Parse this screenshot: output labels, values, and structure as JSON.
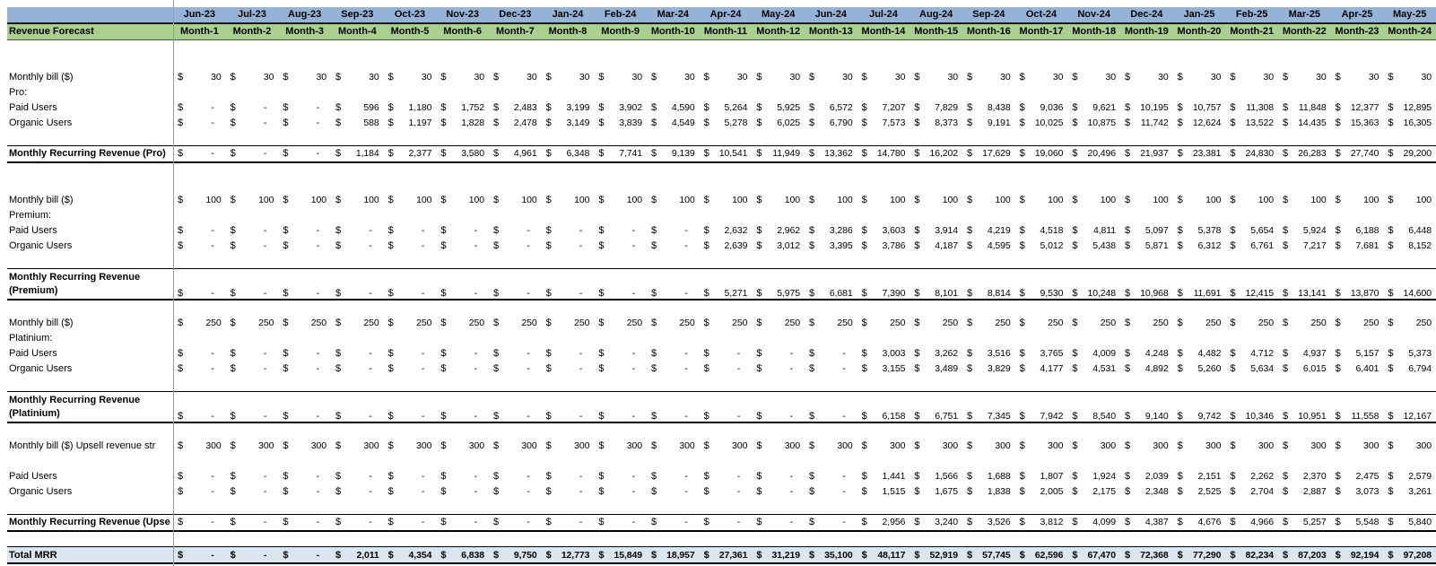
{
  "table": {
    "title": "Revenue Forecast",
    "currency": "$",
    "dates": [
      "Jun-23",
      "Jul-23",
      "Aug-23",
      "Sep-23",
      "Oct-23",
      "Nov-23",
      "Dec-23",
      "Jan-24",
      "Feb-24",
      "Mar-24",
      "Apr-24",
      "May-24",
      "Jun-24",
      "Jul-24",
      "Aug-24",
      "Sep-24",
      "Oct-24",
      "Nov-24",
      "Dec-24",
      "Jan-25",
      "Feb-25",
      "Mar-25",
      "Apr-25",
      "May-25"
    ],
    "months": [
      "Month-1",
      "Month-2",
      "Month-3",
      "Month-4",
      "Month-5",
      "Month-6",
      "Month-7",
      "Month-8",
      "Month-9",
      "Month-10",
      "Month-11",
      "Month-12",
      "Month-13",
      "Month-14",
      "Month-15",
      "Month-16",
      "Month-17",
      "Month-18",
      "Month-19",
      "Month-20",
      "Month-21",
      "Month-22",
      "Month-23",
      "Month-24"
    ],
    "rows": [
      {
        "t": "blank"
      },
      {
        "t": "blank"
      },
      {
        "t": "data",
        "label": "Monthly bill ($)",
        "values": [
          "30",
          "30",
          "30",
          "30",
          "30",
          "30",
          "30",
          "30",
          "30",
          "30",
          "30",
          "30",
          "30",
          "30",
          "30",
          "30",
          "30",
          "30",
          "30",
          "30",
          "30",
          "30",
          "30",
          "30"
        ]
      },
      {
        "t": "label",
        "label": "Pro:"
      },
      {
        "t": "data",
        "label": "Paid Users",
        "values": [
          "-",
          "-",
          "-",
          "596",
          "1,180",
          "1,752",
          "2,483",
          "3,199",
          "3,902",
          "4,590",
          "5,264",
          "5,925",
          "6,572",
          "7,207",
          "7,829",
          "8,438",
          "9,036",
          "9,621",
          "10,195",
          "10,757",
          "11,308",
          "11,848",
          "12,377",
          "12,895"
        ]
      },
      {
        "t": "data",
        "label": "Organic Users",
        "values": [
          "-",
          "-",
          "-",
          "588",
          "1,197",
          "1,828",
          "2,478",
          "3,149",
          "3,839",
          "4,549",
          "5,278",
          "6,025",
          "6,790",
          "7,573",
          "8,373",
          "9,191",
          "10,025",
          "10,875",
          "11,742",
          "12,624",
          "13,522",
          "14,435",
          "15,363",
          "16,305"
        ]
      },
      {
        "t": "blank"
      },
      {
        "t": "mrr",
        "label": "Monthly Recurring Revenue (Pro)",
        "values": [
          "-",
          "-",
          "-",
          "1,184",
          "2,377",
          "3,580",
          "4,961",
          "6,348",
          "7,741",
          "9,139",
          "10,541",
          "11,949",
          "13,362",
          "14,780",
          "16,202",
          "17,629",
          "19,060",
          "20,496",
          "21,937",
          "23,381",
          "24,830",
          "26,283",
          "27,740",
          "29,200"
        ]
      },
      {
        "t": "blank"
      },
      {
        "t": "blank"
      },
      {
        "t": "data",
        "label": "Monthly bill ($)",
        "values": [
          "100",
          "100",
          "100",
          "100",
          "100",
          "100",
          "100",
          "100",
          "100",
          "100",
          "100",
          "100",
          "100",
          "100",
          "100",
          "100",
          "100",
          "100",
          "100",
          "100",
          "100",
          "100",
          "100",
          "100"
        ]
      },
      {
        "t": "label",
        "label": "Premium:"
      },
      {
        "t": "data",
        "label": "Paid Users",
        "values": [
          "-",
          "-",
          "-",
          "-",
          "-",
          "-",
          "-",
          "-",
          "-",
          "-",
          "2,632",
          "2,962",
          "3,286",
          "3,603",
          "3,914",
          "4,219",
          "4,518",
          "4,811",
          "5,097",
          "5,378",
          "5,654",
          "5,924",
          "6,188",
          "6,448"
        ]
      },
      {
        "t": "data",
        "label": "Organic Users",
        "values": [
          "-",
          "-",
          "-",
          "-",
          "-",
          "-",
          "-",
          "-",
          "-",
          "-",
          "2,639",
          "3,012",
          "3,395",
          "3,786",
          "4,187",
          "4,595",
          "5,012",
          "5,438",
          "5,871",
          "6,312",
          "6,761",
          "7,217",
          "7,681",
          "8,152"
        ]
      },
      {
        "t": "blank"
      },
      {
        "t": "mrr2",
        "label": "Monthly Recurring Revenue",
        "label2": "(Premium)",
        "values": [
          "-",
          "-",
          "-",
          "-",
          "-",
          "-",
          "-",
          "-",
          "-",
          "-",
          "5,271",
          "5,975",
          "6,681",
          "7,390",
          "8,101",
          "8,814",
          "9,530",
          "10,248",
          "10,968",
          "11,691",
          "12,415",
          "13,141",
          "13,870",
          "14,600"
        ]
      },
      {
        "t": "blank"
      },
      {
        "t": "data",
        "label": "Monthly bill ($)",
        "values": [
          "250",
          "250",
          "250",
          "250",
          "250",
          "250",
          "250",
          "250",
          "250",
          "250",
          "250",
          "250",
          "250",
          "250",
          "250",
          "250",
          "250",
          "250",
          "250",
          "250",
          "250",
          "250",
          "250",
          "250"
        ]
      },
      {
        "t": "label",
        "label": "Platinium:"
      },
      {
        "t": "data",
        "label": "Paid Users",
        "values": [
          "-",
          "-",
          "-",
          "-",
          "-",
          "-",
          "-",
          "-",
          "-",
          "-",
          "-",
          "-",
          "-",
          "3,003",
          "3,262",
          "3,516",
          "3,765",
          "4,009",
          "4,248",
          "4,482",
          "4,712",
          "4,937",
          "5,157",
          "5,373"
        ]
      },
      {
        "t": "data",
        "label": "Organic Users",
        "values": [
          "-",
          "-",
          "-",
          "-",
          "-",
          "-",
          "-",
          "-",
          "-",
          "-",
          "-",
          "-",
          "-",
          "3,155",
          "3,489",
          "3,829",
          "4,177",
          "4,531",
          "4,892",
          "5,260",
          "5,634",
          "6,015",
          "6,401",
          "6,794"
        ]
      },
      {
        "t": "blank"
      },
      {
        "t": "mrr2",
        "label": "Monthly Recurring Revenue",
        "label2": "(Platinium)",
        "values": [
          "-",
          "-",
          "-",
          "-",
          "-",
          "-",
          "-",
          "-",
          "-",
          "-",
          "-",
          "-",
          "-",
          "6,158",
          "6,751",
          "7,345",
          "7,942",
          "8,540",
          "9,140",
          "9,742",
          "10,346",
          "10,951",
          "11,558",
          "12,167"
        ]
      },
      {
        "t": "blank"
      },
      {
        "t": "data",
        "label": "Monthly bill ($) Upsell revenue str",
        "values": [
          "300",
          "300",
          "300",
          "300",
          "300",
          "300",
          "300",
          "300",
          "300",
          "300",
          "300",
          "300",
          "300",
          "300",
          "300",
          "300",
          "300",
          "300",
          "300",
          "300",
          "300",
          "300",
          "300",
          "300"
        ]
      },
      {
        "t": "blank"
      },
      {
        "t": "data",
        "label": "Paid Users",
        "values": [
          "-",
          "-",
          "-",
          "-",
          "-",
          "-",
          "-",
          "-",
          "-",
          "-",
          "-",
          "-",
          "-",
          "1,441",
          "1,566",
          "1,688",
          "1,807",
          "1,924",
          "2,039",
          "2,151",
          "2,262",
          "2,370",
          "2,475",
          "2,579"
        ]
      },
      {
        "t": "data",
        "label": "Organic Users",
        "values": [
          "-",
          "-",
          "-",
          "-",
          "-",
          "-",
          "-",
          "-",
          "-",
          "-",
          "-",
          "-",
          "-",
          "1,515",
          "1,675",
          "1,838",
          "2,005",
          "2,175",
          "2,348",
          "2,525",
          "2,704",
          "2,887",
          "3,073",
          "3,261"
        ]
      },
      {
        "t": "blank"
      },
      {
        "t": "mrr",
        "label": "Monthly Recurring Revenue (Upse",
        "values": [
          "-",
          "-",
          "-",
          "-",
          "-",
          "-",
          "-",
          "-",
          "-",
          "-",
          "-",
          "-",
          "-",
          "2,956",
          "3,240",
          "3,526",
          "3,812",
          "4,099",
          "4,387",
          "4,676",
          "4,966",
          "5,257",
          "5,548",
          "5,840"
        ]
      },
      {
        "t": "blank"
      },
      {
        "t": "total",
        "label": "Total MRR",
        "values": [
          "-",
          "-",
          "-",
          "2,011",
          "4,354",
          "6,838",
          "9,750",
          "12,773",
          "15,849",
          "18,957",
          "27,361",
          "31,219",
          "35,100",
          "48,117",
          "52,919",
          "57,745",
          "62,596",
          "67,470",
          "72,368",
          "77,290",
          "82,234",
          "87,203",
          "92,194",
          "97,208"
        ]
      },
      {
        "t": "blank"
      }
    ]
  }
}
